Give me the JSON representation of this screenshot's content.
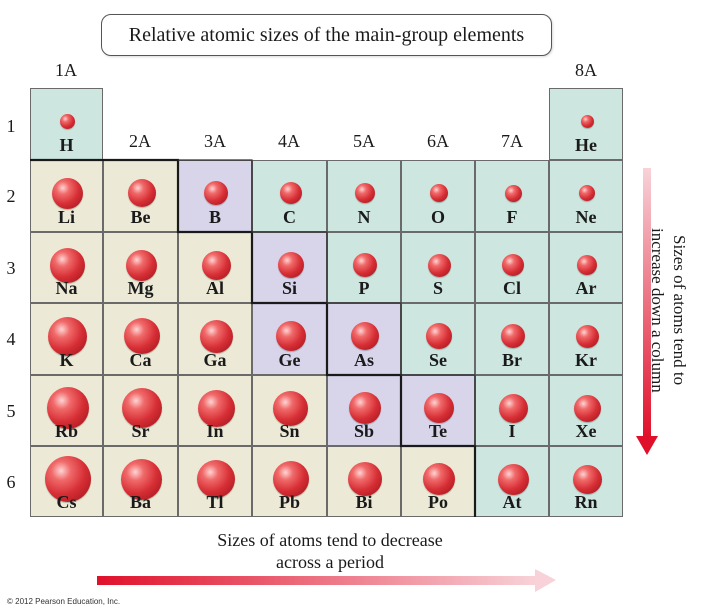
{
  "title": "Relative atomic sizes of the main-group elements",
  "group_labels": [
    "1A",
    "2A",
    "3A",
    "4A",
    "5A",
    "6A",
    "7A",
    "8A"
  ],
  "period_labels": [
    "1",
    "2",
    "3",
    "4",
    "5",
    "6"
  ],
  "vertical_trend_text": "Sizes of atoms tend to increase down a column",
  "horizontal_trend_text": "Sizes of atoms tend to decrease across a period",
  "copyright": "© 2012 Pearson Education, Inc.",
  "colors": {
    "metal_bg": "#ecead6",
    "nonmetal_bg": "#cde6df",
    "metalloid_bg": "#d8d4ea",
    "atom": "#d62e35",
    "arrow_start": "#e0102a",
    "arrow_end": "#f8d2d8"
  },
  "elements": [
    {
      "symbol": "H",
      "period": 1,
      "group": 1,
      "type": "nonmetal",
      "relative_size": 0.33
    },
    {
      "symbol": "He",
      "period": 1,
      "group": 8,
      "type": "nonmetal",
      "relative_size": 0.28
    },
    {
      "symbol": "Li",
      "period": 2,
      "group": 1,
      "type": "metal",
      "relative_size": 0.67
    },
    {
      "symbol": "Be",
      "period": 2,
      "group": 2,
      "type": "metal",
      "relative_size": 0.6
    },
    {
      "symbol": "B",
      "period": 2,
      "group": 3,
      "type": "metalloid",
      "relative_size": 0.52
    },
    {
      "symbol": "C",
      "period": 2,
      "group": 4,
      "type": "nonmetal",
      "relative_size": 0.47
    },
    {
      "symbol": "N",
      "period": 2,
      "group": 5,
      "type": "nonmetal",
      "relative_size": 0.43
    },
    {
      "symbol": "O",
      "period": 2,
      "group": 6,
      "type": "nonmetal",
      "relative_size": 0.4
    },
    {
      "symbol": "F",
      "period": 2,
      "group": 7,
      "type": "nonmetal",
      "relative_size": 0.38
    },
    {
      "symbol": "Ne",
      "period": 2,
      "group": 8,
      "type": "nonmetal",
      "relative_size": 0.35
    },
    {
      "symbol": "Na",
      "period": 3,
      "group": 1,
      "type": "metal",
      "relative_size": 0.75
    },
    {
      "symbol": "Mg",
      "period": 3,
      "group": 2,
      "type": "metal",
      "relative_size": 0.68
    },
    {
      "symbol": "Al",
      "period": 3,
      "group": 3,
      "type": "metal",
      "relative_size": 0.63
    },
    {
      "symbol": "Si",
      "period": 3,
      "group": 4,
      "type": "metalloid",
      "relative_size": 0.57
    },
    {
      "symbol": "P",
      "period": 3,
      "group": 5,
      "type": "nonmetal",
      "relative_size": 0.52
    },
    {
      "symbol": "S",
      "period": 3,
      "group": 6,
      "type": "nonmetal",
      "relative_size": 0.49
    },
    {
      "symbol": "Cl",
      "period": 3,
      "group": 7,
      "type": "nonmetal",
      "relative_size": 0.47
    },
    {
      "symbol": "Ar",
      "period": 3,
      "group": 8,
      "type": "nonmetal",
      "relative_size": 0.44
    },
    {
      "symbol": "K",
      "period": 4,
      "group": 1,
      "type": "metal",
      "relative_size": 0.85
    },
    {
      "symbol": "Ca",
      "period": 4,
      "group": 2,
      "type": "metal",
      "relative_size": 0.79
    },
    {
      "symbol": "Ga",
      "period": 4,
      "group": 3,
      "type": "metal",
      "relative_size": 0.72
    },
    {
      "symbol": "Ge",
      "period": 4,
      "group": 4,
      "type": "metalloid",
      "relative_size": 0.66
    },
    {
      "symbol": "As",
      "period": 4,
      "group": 5,
      "type": "metalloid",
      "relative_size": 0.6
    },
    {
      "symbol": "Se",
      "period": 4,
      "group": 6,
      "type": "nonmetal",
      "relative_size": 0.57
    },
    {
      "symbol": "Br",
      "period": 4,
      "group": 7,
      "type": "nonmetal",
      "relative_size": 0.53
    },
    {
      "symbol": "Kr",
      "period": 4,
      "group": 8,
      "type": "nonmetal",
      "relative_size": 0.5
    },
    {
      "symbol": "Rb",
      "period": 5,
      "group": 1,
      "type": "metal",
      "relative_size": 0.92
    },
    {
      "symbol": "Sr",
      "period": 5,
      "group": 2,
      "type": "metal",
      "relative_size": 0.86
    },
    {
      "symbol": "In",
      "period": 5,
      "group": 3,
      "type": "metal",
      "relative_size": 0.8
    },
    {
      "symbol": "Sn",
      "period": 5,
      "group": 4,
      "type": "metal",
      "relative_size": 0.75
    },
    {
      "symbol": "Sb",
      "period": 5,
      "group": 5,
      "type": "metalloid",
      "relative_size": 0.7
    },
    {
      "symbol": "Te",
      "period": 5,
      "group": 6,
      "type": "metalloid",
      "relative_size": 0.65
    },
    {
      "symbol": "I",
      "period": 5,
      "group": 7,
      "type": "nonmetal",
      "relative_size": 0.62
    },
    {
      "symbol": "Xe",
      "period": 5,
      "group": 8,
      "type": "nonmetal",
      "relative_size": 0.58
    },
    {
      "symbol": "Cs",
      "period": 6,
      "group": 1,
      "type": "metal",
      "relative_size": 1.0
    },
    {
      "symbol": "Ba",
      "period": 6,
      "group": 2,
      "type": "metal",
      "relative_size": 0.9
    },
    {
      "symbol": "Tl",
      "period": 6,
      "group": 3,
      "type": "metal",
      "relative_size": 0.82
    },
    {
      "symbol": "Pb",
      "period": 6,
      "group": 4,
      "type": "metal",
      "relative_size": 0.78
    },
    {
      "symbol": "Bi",
      "period": 6,
      "group": 5,
      "type": "metal",
      "relative_size": 0.74
    },
    {
      "symbol": "Po",
      "period": 6,
      "group": 6,
      "type": "metal",
      "relative_size": 0.7
    },
    {
      "symbol": "At",
      "period": 6,
      "group": 7,
      "type": "nonmetal",
      "relative_size": 0.67
    },
    {
      "symbol": "Rn",
      "period": 6,
      "group": 8,
      "type": "nonmetal",
      "relative_size": 0.64
    }
  ]
}
